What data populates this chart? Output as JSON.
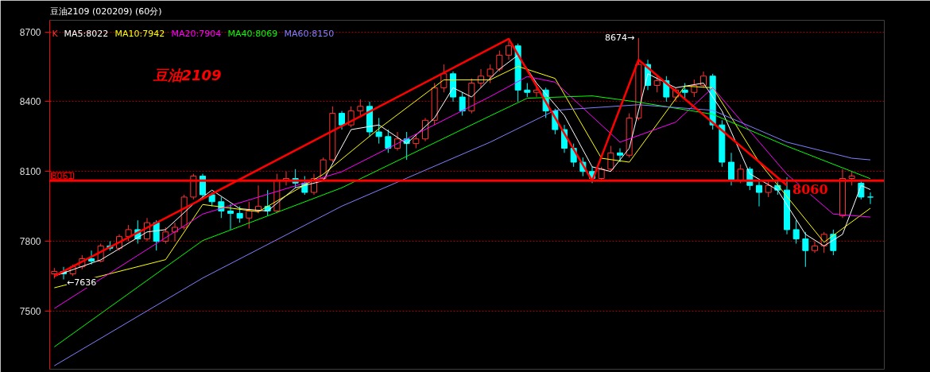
{
  "chart_data": {
    "type": "candlestick",
    "title": "豆油2109 (020209) (60分)",
    "categories": [
      null,
      null,
      null,
      null,
      null,
      null,
      null,
      null,
      null,
      null,
      null,
      null,
      null,
      null,
      null,
      null,
      null,
      null,
      null,
      null,
      null,
      null,
      null,
      null,
      null,
      null,
      null,
      null,
      null,
      null,
      null,
      null,
      null,
      null,
      null,
      null,
      null,
      null,
      null,
      null,
      null,
      null,
      null,
      null,
      null,
      null,
      null,
      null,
      null,
      null,
      null,
      null,
      null,
      null,
      null,
      null,
      null,
      null,
      null,
      null,
      null,
      null,
      null,
      null,
      null,
      null,
      null,
      null,
      null,
      null,
      null,
      null,
      null,
      null,
      null,
      null,
      null,
      null,
      null,
      null,
      null,
      null,
      null,
      null,
      null,
      null,
      null,
      null,
      null
    ],
    "ylim": [
      7250,
      8750
    ],
    "yticks": [
      7500,
      7800,
      8100,
      8400,
      8700
    ],
    "tick_labels": "y",
    "grid": "y",
    "legend": "top left",
    "series": [
      {
        "name": "K",
        "ohlc": [
          [
            7660,
            7685,
            7640,
            7670
          ],
          [
            7670,
            7690,
            7636,
            7660
          ],
          [
            7660,
            7700,
            7650,
            7690
          ],
          [
            7690,
            7740,
            7680,
            7725
          ],
          [
            7725,
            7760,
            7700,
            7715
          ],
          [
            7715,
            7790,
            7710,
            7780
          ],
          [
            7780,
            7800,
            7760,
            7770
          ],
          [
            7770,
            7830,
            7760,
            7820
          ],
          [
            7820,
            7870,
            7800,
            7850
          ],
          [
            7850,
            7890,
            7790,
            7810
          ],
          [
            7810,
            7900,
            7800,
            7880
          ],
          [
            7880,
            7890,
            7760,
            7800
          ],
          [
            7800,
            7860,
            7790,
            7840
          ],
          [
            7840,
            7880,
            7800,
            7860
          ],
          [
            7860,
            8000,
            7850,
            7990
          ],
          [
            7990,
            8090,
            7980,
            8080
          ],
          [
            8080,
            8090,
            7990,
            8000
          ],
          [
            8000,
            8010,
            7950,
            7970
          ],
          [
            7970,
            7990,
            7900,
            7930
          ],
          [
            7930,
            7960,
            7850,
            7920
          ],
          [
            7920,
            7950,
            7880,
            7900
          ],
          [
            7900,
            7970,
            7855,
            7930
          ],
          [
            7930,
            8040,
            7920,
            7950
          ],
          [
            7950,
            8020,
            7910,
            7930
          ],
          [
            7930,
            8090,
            7920,
            8060
          ],
          [
            8060,
            8100,
            8040,
            8070
          ],
          [
            8070,
            8110,
            8030,
            8050
          ],
          [
            8050,
            8080,
            8000,
            8010
          ],
          [
            8010,
            8090,
            8000,
            8070
          ],
          [
            8070,
            8160,
            8060,
            8150
          ],
          [
            8150,
            8380,
            8140,
            8350
          ],
          [
            8350,
            8360,
            8280,
            8300
          ],
          [
            8300,
            8380,
            8290,
            8360
          ],
          [
            8360,
            8410,
            8340,
            8380
          ],
          [
            8380,
            8400,
            8250,
            8270
          ],
          [
            8270,
            8330,
            8220,
            8250
          ],
          [
            8250,
            8280,
            8180,
            8200
          ],
          [
            8200,
            8270,
            8190,
            8240
          ],
          [
            8240,
            8270,
            8150,
            8220
          ],
          [
            8220,
            8260,
            8200,
            8240
          ],
          [
            8240,
            8330,
            8230,
            8320
          ],
          [
            8320,
            8480,
            8300,
            8460
          ],
          [
            8460,
            8560,
            8440,
            8520
          ],
          [
            8520,
            8530,
            8400,
            8420
          ],
          [
            8420,
            8440,
            8340,
            8360
          ],
          [
            8360,
            8500,
            8350,
            8480
          ],
          [
            8480,
            8540,
            8460,
            8510
          ],
          [
            8510,
            8560,
            8480,
            8540
          ],
          [
            8540,
            8620,
            8530,
            8600
          ],
          [
            8600,
            8660,
            8580,
            8640
          ],
          [
            8640,
            8650,
            8400,
            8450
          ],
          [
            8450,
            8480,
            8420,
            8440
          ],
          [
            8440,
            8470,
            8420,
            8450
          ],
          [
            8450,
            8460,
            8330,
            8360
          ],
          [
            8360,
            8370,
            8260,
            8280
          ],
          [
            8280,
            8300,
            8180,
            8200
          ],
          [
            8200,
            8220,
            8120,
            8140
          ],
          [
            8140,
            8160,
            8080,
            8100
          ],
          [
            8100,
            8120,
            8050,
            8070
          ],
          [
            8070,
            8120,
            8060,
            8110
          ],
          [
            8110,
            8210,
            8100,
            8180
          ],
          [
            8180,
            8200,
            8140,
            8170
          ],
          [
            8170,
            8350,
            8160,
            8330
          ],
          [
            8330,
            8674,
            8320,
            8560
          ],
          [
            8560,
            8580,
            8450,
            8470
          ],
          [
            8470,
            8510,
            8440,
            8490
          ],
          [
            8490,
            8510,
            8400,
            8420
          ],
          [
            8420,
            8460,
            8400,
            8450
          ],
          [
            8450,
            8480,
            8410,
            8440
          ],
          [
            8440,
            8495,
            8420,
            8470
          ],
          [
            8470,
            8530,
            8460,
            8510
          ],
          [
            8510,
            8520,
            8280,
            8300
          ],
          [
            8300,
            8320,
            8120,
            8140
          ],
          [
            8140,
            8180,
            8040,
            8060
          ],
          [
            8060,
            8130,
            8050,
            8110
          ],
          [
            8110,
            8120,
            8020,
            8040
          ],
          [
            8040,
            8060,
            7950,
            8010
          ],
          [
            8010,
            8060,
            7990,
            8040
          ],
          [
            8040,
            8060,
            8000,
            8020
          ],
          [
            8020,
            8075,
            7830,
            7850
          ],
          [
            7850,
            7890,
            7790,
            7810
          ],
          [
            7810,
            7840,
            7690,
            7760
          ],
          [
            7760,
            7800,
            7750,
            7780
          ],
          [
            7780,
            7840,
            7750,
            7830
          ],
          [
            7830,
            7850,
            7740,
            7760
          ],
          [
            7910,
            8110,
            7900,
            8070
          ],
          [
            8070,
            8100,
            8040,
            8080
          ],
          [
            8050,
            8060,
            7980,
            7990
          ],
          [
            7990,
            8010,
            7960,
            7990
          ]
        ],
        "colors": [
          "#ff3232",
          "#00ffff",
          "#ff3232",
          "#ff3232",
          "#00ffff",
          "#ff3232",
          "#00ffff",
          "#ff3232",
          "#ff3232",
          "#00ffff",
          "#ff3232",
          "#00ffff",
          "#ff3232",
          "#ff3232",
          "#ff3232",
          "#ff3232",
          "#00ffff",
          "#00ffff",
          "#00ffff",
          "#00ffff",
          "#00ffff",
          "#ff3232",
          "#ff3232",
          "#00ffff",
          "#ff3232",
          "#ff3232",
          "#00ffff",
          "#00ffff",
          "#ff3232",
          "#ff3232",
          "#ff3232",
          "#00ffff",
          "#ff3232",
          "#ff3232",
          "#00ffff",
          "#00ffff",
          "#00ffff",
          "#ff3232",
          "#00ffff",
          "#ff3232",
          "#ff3232",
          "#ff3232",
          "#ff3232",
          "#00ffff",
          "#00ffff",
          "#ff3232",
          "#ff3232",
          "#ff3232",
          "#ff3232",
          "#ff3232",
          "#00ffff",
          "#00ffff",
          "#ff3232",
          "#00ffff",
          "#00ffff",
          "#00ffff",
          "#00ffff",
          "#00ffff",
          "#00ffff",
          "#ff3232",
          "#ff3232",
          "#00ffff",
          "#ff3232",
          "#ff3232",
          "#00ffff",
          "#ff3232",
          "#00ffff",
          "#ff3232",
          "#00ffff",
          "#ff3232",
          "#ff3232",
          "#00ffff",
          "#00ffff",
          "#00ffff",
          "#ff3232",
          "#00ffff",
          "#00ffff",
          "#ff3232",
          "#00ffff",
          "#00ffff",
          "#00ffff",
          "#00ffff",
          "#ff3232",
          "#ff3232",
          "#00ffff",
          "#ff3232",
          "#ff3232",
          "#00ffff",
          "#00ffff"
        ]
      },
      {
        "name": "MA5:8022",
        "type": "line",
        "color": "#ffffff",
        "values": [
          7650,
          null,
          null,
          null,
          null,
          7720,
          null,
          null,
          null,
          null,
          7840,
          null,
          7850,
          null,
          null,
          7960,
          null,
          8020,
          null,
          null,
          7940,
          null,
          null,
          7930,
          null,
          null,
          8030,
          null,
          null,
          8060,
          null,
          null,
          8280,
          null,
          null,
          8300,
          null,
          null,
          8220,
          null,
          null,
          8330,
          null,
          8460,
          null,
          8420,
          null,
          null,
          8540,
          null,
          8600,
          null,
          8480,
          null,
          null,
          8340,
          null,
          null,
          8120,
          null,
          8100,
          null,
          8200,
          null,
          8520,
          null,
          null,
          8460,
          null,
          null,
          8480,
          null,
          8360,
          null,
          null,
          8090,
          null,
          null,
          8020,
          null,
          null,
          7830,
          null,
          7780,
          null,
          7830,
          null,
          8040,
          8022
        ]
      },
      {
        "name": "MA10:7942",
        "type": "line",
        "color": "#ffff00",
        "values": [
          7600,
          null,
          null,
          null,
          null,
          null,
          null,
          null,
          null,
          null,
          null,
          null,
          7721,
          null,
          null,
          null,
          7958,
          null,
          null,
          null,
          null,
          null,
          7927,
          null,
          null,
          null,
          null,
          null,
          null,
          8088,
          null,
          null,
          null,
          null,
          null,
          8284,
          null,
          null,
          null,
          null,
          null,
          null,
          8494,
          null,
          null,
          null,
          null,
          8494,
          null,
          null,
          8552,
          null,
          null,
          null,
          8500,
          null,
          null,
          null,
          null,
          8157,
          null,
          null,
          8140,
          null,
          null,
          null,
          null,
          null,
          8467,
          null,
          null,
          8460,
          null,
          null,
          null,
          null,
          8140,
          null,
          null,
          null,
          null,
          null,
          null,
          7796,
          null,
          null,
          null,
          null,
          7942
        ]
      },
      {
        "name": "MA20:7904",
        "type": "line",
        "color": "#ff00ff",
        "values": [
          7511,
          null,
          null,
          null,
          null,
          null,
          null,
          null,
          null,
          null,
          null,
          null,
          null,
          null,
          null,
          null,
          7917,
          null,
          null,
          null,
          null,
          null,
          null,
          null,
          null,
          null,
          null,
          null,
          null,
          null,
          null,
          8099,
          null,
          null,
          null,
          null,
          null,
          null,
          null,
          null,
          null,
          null,
          null,
          null,
          null,
          null,
          null,
          8422,
          null,
          null,
          null,
          8508,
          null,
          null,
          8484,
          null,
          null,
          null,
          null,
          null,
          null,
          8226,
          null,
          null,
          null,
          null,
          null,
          8312,
          null,
          null,
          null,
          8460,
          null,
          null,
          null,
          null,
          null,
          null,
          null,
          8088,
          null,
          null,
          null,
          null,
          7917,
          null,
          null,
          null,
          7904
        ]
      },
      {
        "name": "MA40:8069",
        "type": "line",
        "color": "#00ff00",
        "values": [
          7346,
          null,
          null,
          null,
          null,
          null,
          null,
          null,
          null,
          null,
          null,
          null,
          null,
          null,
          null,
          null,
          7803,
          null,
          null,
          null,
          null,
          null,
          null,
          null,
          null,
          null,
          null,
          null,
          null,
          null,
          null,
          8030,
          null,
          null,
          null,
          null,
          null,
          null,
          null,
          null,
          null,
          null,
          null,
          null,
          null,
          null,
          null,
          8339,
          null,
          null,
          null,
          8415,
          null,
          null,
          null,
          null,
          null,
          null,
          8425,
          null,
          null,
          null,
          null,
          8398,
          null,
          null,
          null,
          null,
          null,
          null,
          null,
          8346,
          null,
          null,
          null,
          null,
          null,
          null,
          null,
          8209,
          null,
          null,
          null,
          null,
          null,
          null,
          null,
          null,
          8069
        ]
      },
      {
        "name": "MA60:8150",
        "type": "line",
        "color": "#8080ff",
        "values": [
          7265,
          null,
          null,
          null,
          null,
          null,
          null,
          null,
          null,
          null,
          null,
          null,
          null,
          null,
          null,
          null,
          7642,
          null,
          null,
          null,
          null,
          null,
          null,
          null,
          null,
          null,
          null,
          null,
          null,
          null,
          null,
          7951,
          null,
          null,
          null,
          null,
          null,
          null,
          null,
          null,
          null,
          null,
          null,
          null,
          null,
          null,
          null,
          8226,
          null,
          null,
          null,
          null,
          null,
          null,
          8363,
          null,
          null,
          null,
          null,
          null,
          null,
          null,
          null,
          8387,
          null,
          null,
          null,
          null,
          null,
          null,
          null,
          8363,
          null,
          null,
          null,
          null,
          null,
          null,
          null,
          8226,
          null,
          null,
          null,
          null,
          null,
          null,
          8157,
          null,
          8150
        ]
      },
      {
        "type": "line",
        "color": "#ff0000",
        "values": [
          7650,
          null,
          null,
          null,
          null,
          null,
          null,
          null,
          null,
          null,
          null,
          null,
          null,
          null,
          null,
          null,
          null,
          null,
          null,
          null,
          null,
          null,
          null,
          null,
          null,
          null,
          null,
          null,
          null,
          null,
          null,
          null,
          null,
          null,
          null,
          null,
          null,
          null,
          null,
          null,
          null,
          null,
          null,
          null,
          null,
          null,
          null,
          null,
          null,
          8670,
          null,
          null,
          null,
          null,
          null,
          null,
          null,
          null,
          8060,
          null,
          null,
          null,
          null,
          8580,
          null,
          null,
          null,
          null,
          null,
          null,
          null,
          null,
          null,
          null,
          null,
          null,
          null,
          null,
          null,
          8040,
          null,
          null,
          null,
          null,
          null,
          null,
          null,
          null,
          null
        ]
      }
    ],
    "ref_lines": [
      {
        "axis": "y",
        "value": 8061,
        "label": "8061",
        "color": "#ff0000"
      }
    ],
    "annotations": [
      {
        "text": "8674→",
        "y": 8674
      },
      {
        "text": "←7636",
        "y": 7636
      },
      {
        "text": "8060",
        "y": 8060
      },
      "豆油2109"
    ]
  }
}
